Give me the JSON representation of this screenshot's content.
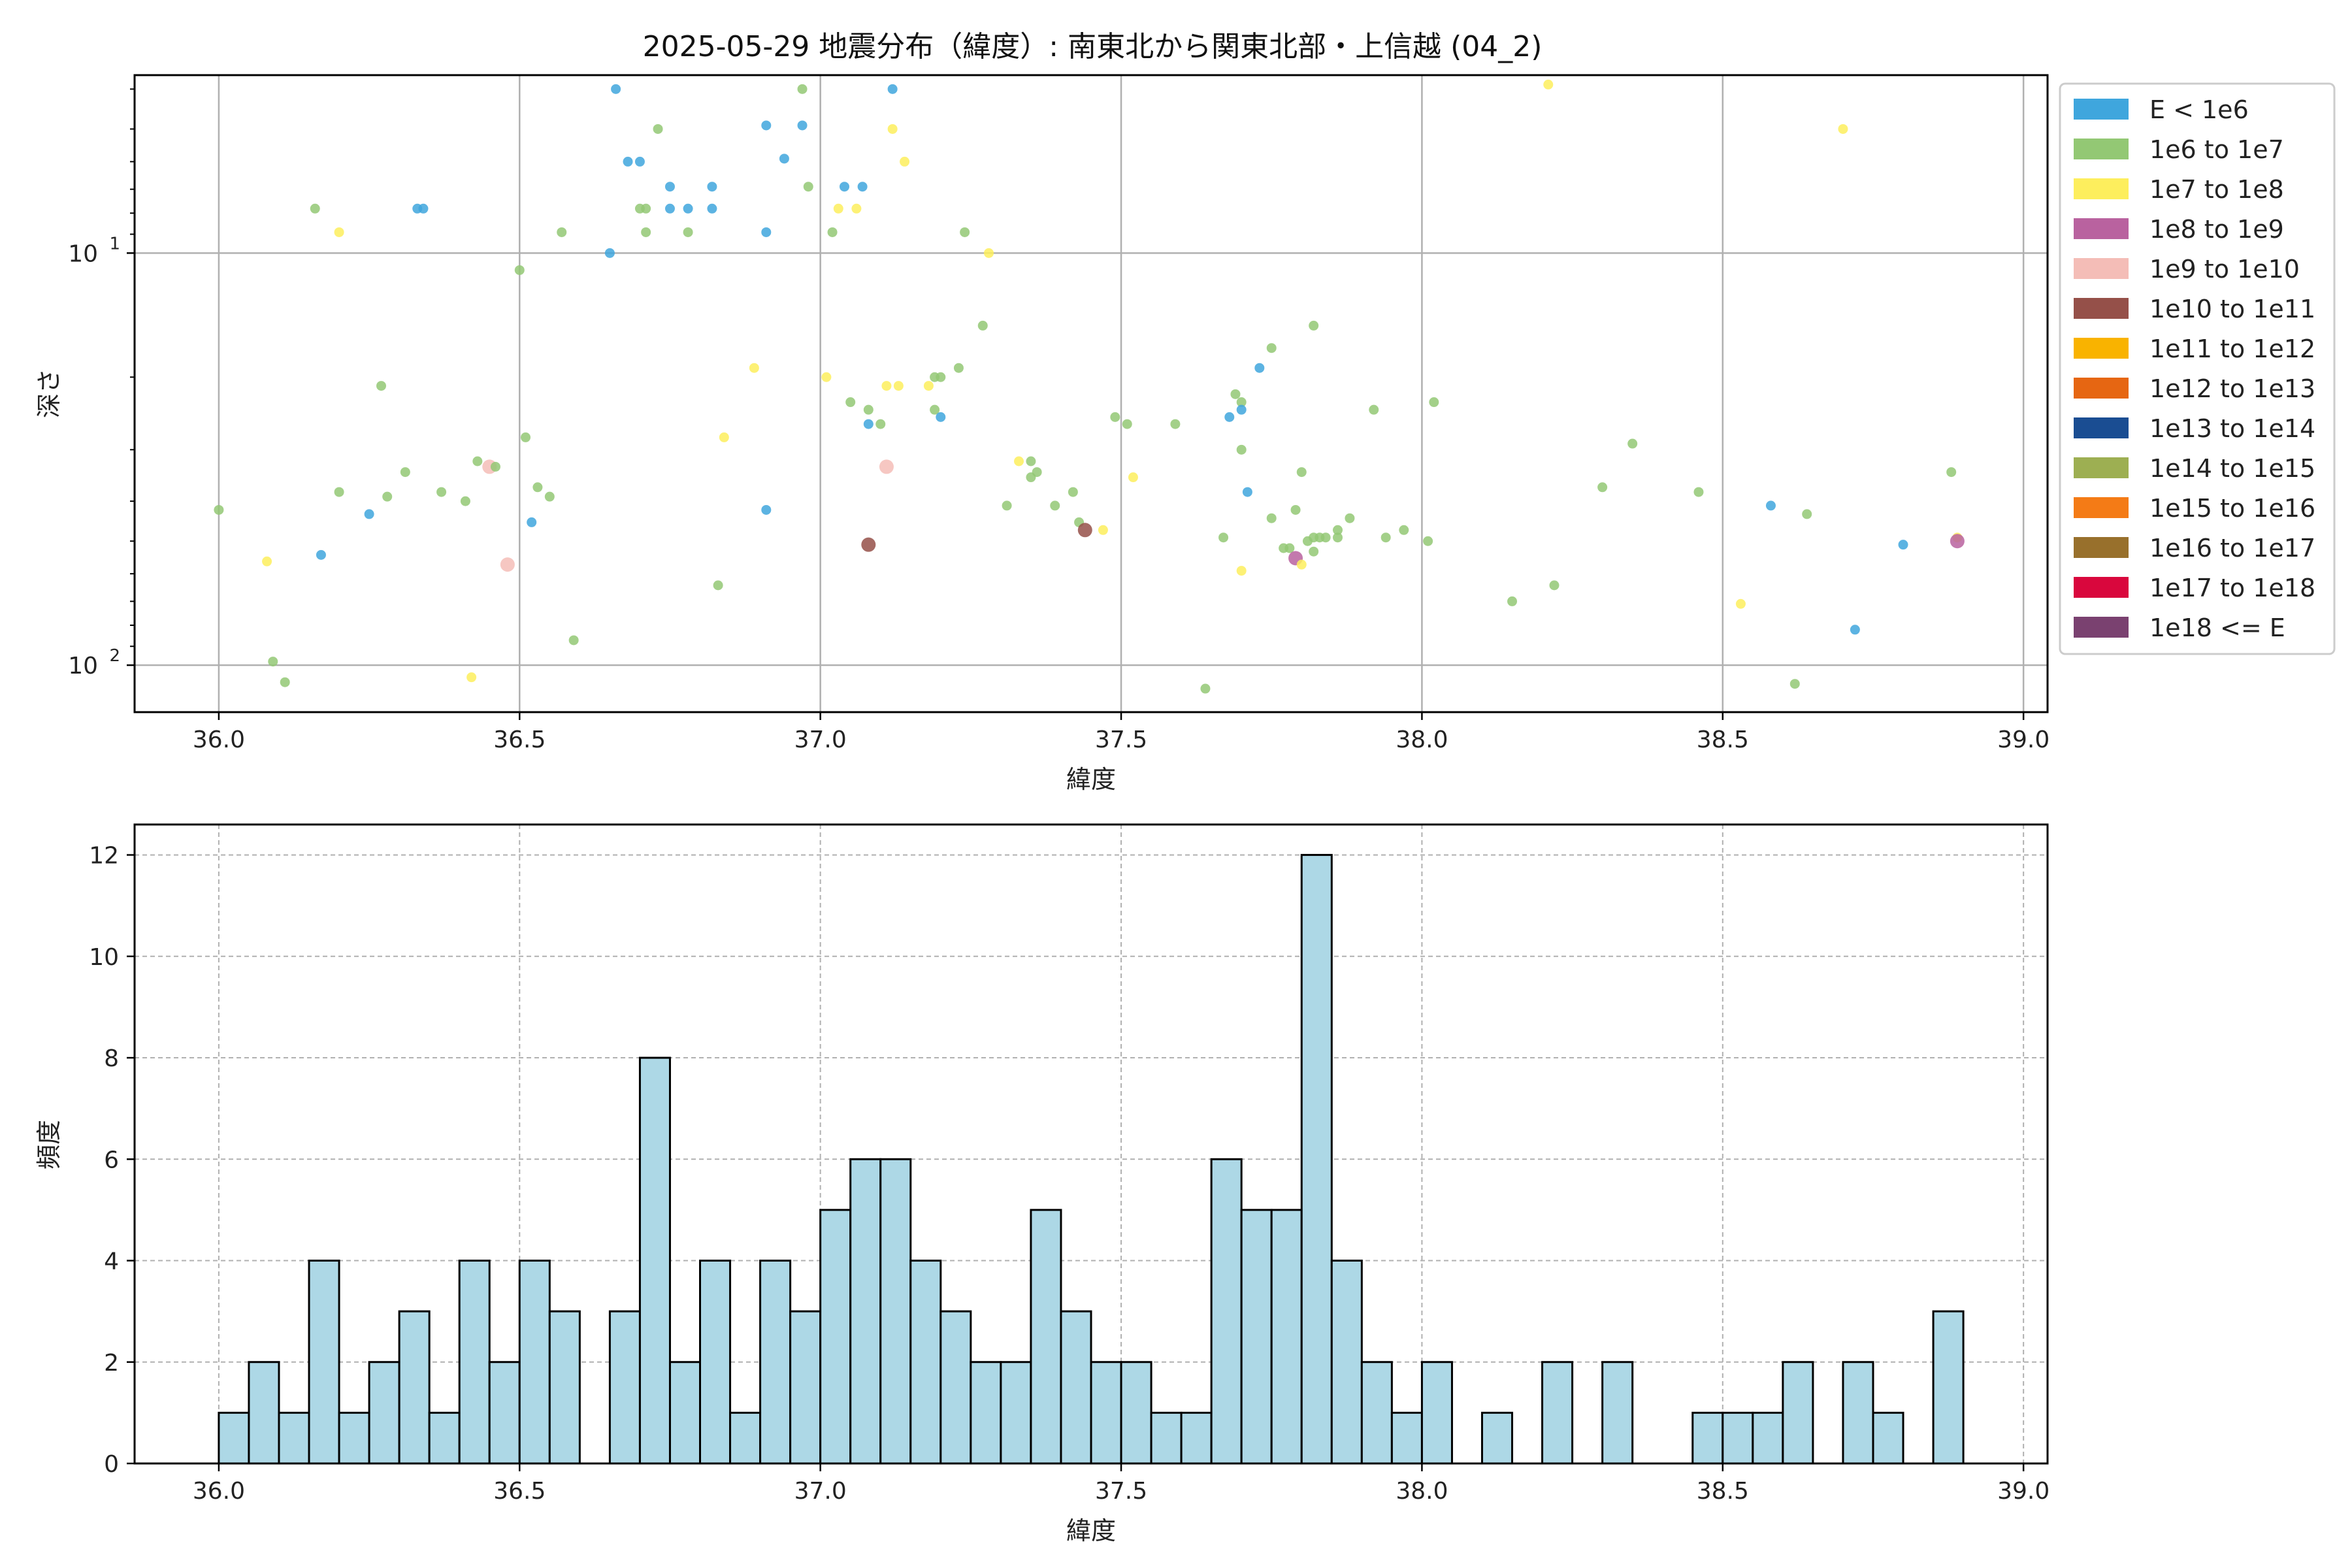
{
  "title": "2025-05-29 地震分布（緯度）: 南東北から関東北部・上信越 (04_2)",
  "chart_data": [
    {
      "type": "scatter",
      "xlabel": "緯度",
      "ylabel": "深さ",
      "xlim": [
        35.86,
        39.04
      ],
      "ylim": [
        130,
        3.7
      ],
      "yscale": "log",
      "y_inverted": true,
      "grid": true,
      "x_ticks": [
        "36.0",
        "36.5",
        "37.0",
        "37.5",
        "38.0",
        "38.5",
        "39.0"
      ],
      "y_tick_labels": [
        {
          "value": 10,
          "base": "10",
          "exp": "1"
        },
        {
          "value": 100,
          "base": "10",
          "exp": "2"
        }
      ],
      "legend_placement": "outside-right-top",
      "legend": [
        {
          "label": "E < 1e6",
          "color": "#3fa6dd"
        },
        {
          "label": "1e6 to 1e7",
          "color": "#93c874"
        },
        {
          "label": "1e7 to 1e8",
          "color": "#fdee5d"
        },
        {
          "label": "1e8 to 1e9",
          "color": "#b9629f"
        },
        {
          "label": "1e9 to 1e10",
          "color": "#f4bdb7"
        },
        {
          "label": "1e10 to 1e11",
          "color": "#955049"
        },
        {
          "label": "1e11 to 1e12",
          "color": "#f9b300"
        },
        {
          "label": "1e12 to 1e13",
          "color": "#e66612"
        },
        {
          "label": "1e13 to 1e14",
          "color": "#1a4d92"
        },
        {
          "label": "1e14 to 1e15",
          "color": "#9daf52"
        },
        {
          "label": "1e15 to 1e16",
          "color": "#f47b16"
        },
        {
          "label": "1e16 to 1e17",
          "color": "#98702c"
        },
        {
          "label": "1e17 to 1e18",
          "color": "#d9073d"
        },
        {
          "label": "1e18 <= E",
          "color": "#7a4170"
        }
      ],
      "points": [
        {
          "x": 36.0,
          "y": 42,
          "c": 1
        },
        {
          "x": 36.08,
          "y": 56,
          "c": 2
        },
        {
          "x": 36.09,
          "y": 98,
          "c": 1
        },
        {
          "x": 36.11,
          "y": 110,
          "c": 1
        },
        {
          "x": 36.16,
          "y": 7.8,
          "c": 1
        },
        {
          "x": 36.17,
          "y": 54,
          "c": 0
        },
        {
          "x": 36.2,
          "y": 8.9,
          "c": 2
        },
        {
          "x": 36.2,
          "y": 38,
          "c": 1
        },
        {
          "x": 36.25,
          "y": 43,
          "c": 0
        },
        {
          "x": 36.27,
          "y": 21,
          "c": 1
        },
        {
          "x": 36.28,
          "y": 39,
          "c": 1
        },
        {
          "x": 36.31,
          "y": 34,
          "c": 1
        },
        {
          "x": 36.33,
          "y": 7.8,
          "c": 0
        },
        {
          "x": 36.34,
          "y": 7.8,
          "c": 0
        },
        {
          "x": 36.37,
          "y": 38,
          "c": 1
        },
        {
          "x": 36.41,
          "y": 40,
          "c": 1
        },
        {
          "x": 36.42,
          "y": 107,
          "c": 2
        },
        {
          "x": 36.43,
          "y": 32,
          "c": 1
        },
        {
          "x": 36.45,
          "y": 33,
          "c": 4
        },
        {
          "x": 36.46,
          "y": 33,
          "c": 1
        },
        {
          "x": 36.48,
          "y": 57,
          "c": 4
        },
        {
          "x": 36.5,
          "y": 11,
          "c": 1
        },
        {
          "x": 36.51,
          "y": 28,
          "c": 1
        },
        {
          "x": 36.52,
          "y": 45,
          "c": 0
        },
        {
          "x": 36.53,
          "y": 37,
          "c": 1
        },
        {
          "x": 36.55,
          "y": 39,
          "c": 1
        },
        {
          "x": 36.57,
          "y": 8.9,
          "c": 1
        },
        {
          "x": 36.59,
          "y": 87,
          "c": 1
        },
        {
          "x": 36.65,
          "y": 10,
          "c": 0
        },
        {
          "x": 36.66,
          "y": 4.0,
          "c": 0
        },
        {
          "x": 36.68,
          "y": 6.0,
          "c": 0
        },
        {
          "x": 36.7,
          "y": 6.0,
          "c": 0
        },
        {
          "x": 36.7,
          "y": 7.8,
          "c": 1
        },
        {
          "x": 36.71,
          "y": 8.9,
          "c": 1
        },
        {
          "x": 36.71,
          "y": 7.8,
          "c": 1
        },
        {
          "x": 36.73,
          "y": 5.0,
          "c": 1
        },
        {
          "x": 36.75,
          "y": 6.9,
          "c": 0
        },
        {
          "x": 36.75,
          "y": 7.8,
          "c": 0
        },
        {
          "x": 36.78,
          "y": 7.8,
          "c": 0
        },
        {
          "x": 36.78,
          "y": 8.9,
          "c": 1
        },
        {
          "x": 36.82,
          "y": 6.9,
          "c": 0
        },
        {
          "x": 36.82,
          "y": 7.8,
          "c": 0
        },
        {
          "x": 36.83,
          "y": 64,
          "c": 1
        },
        {
          "x": 36.84,
          "y": 28,
          "c": 2
        },
        {
          "x": 36.89,
          "y": 19,
          "c": 2
        },
        {
          "x": 36.91,
          "y": 4.9,
          "c": 0
        },
        {
          "x": 36.91,
          "y": 8.9,
          "c": 0
        },
        {
          "x": 36.91,
          "y": 42,
          "c": 0
        },
        {
          "x": 36.94,
          "y": 5.9,
          "c": 0
        },
        {
          "x": 36.97,
          "y": 4.0,
          "c": 1
        },
        {
          "x": 36.97,
          "y": 4.9,
          "c": 0
        },
        {
          "x": 36.98,
          "y": 6.9,
          "c": 1
        },
        {
          "x": 37.01,
          "y": 20,
          "c": 2
        },
        {
          "x": 37.02,
          "y": 8.9,
          "c": 1
        },
        {
          "x": 37.03,
          "y": 7.8,
          "c": 2
        },
        {
          "x": 37.04,
          "y": 6.9,
          "c": 0
        },
        {
          "x": 37.05,
          "y": 23,
          "c": 1
        },
        {
          "x": 37.06,
          "y": 7.8,
          "c": 2
        },
        {
          "x": 37.07,
          "y": 6.9,
          "c": 0
        },
        {
          "x": 37.08,
          "y": 24,
          "c": 1
        },
        {
          "x": 37.08,
          "y": 26,
          "c": 0
        },
        {
          "x": 37.08,
          "y": 51,
          "c": 5
        },
        {
          "x": 37.1,
          "y": 26,
          "c": 1
        },
        {
          "x": 37.11,
          "y": 33,
          "c": 4
        },
        {
          "x": 37.11,
          "y": 21,
          "c": 2
        },
        {
          "x": 37.12,
          "y": 4.0,
          "c": 0
        },
        {
          "x": 37.12,
          "y": 5.0,
          "c": 2
        },
        {
          "x": 37.13,
          "y": 21,
          "c": 2
        },
        {
          "x": 37.14,
          "y": 6.0,
          "c": 2
        },
        {
          "x": 37.18,
          "y": 21,
          "c": 2
        },
        {
          "x": 37.19,
          "y": 20,
          "c": 1
        },
        {
          "x": 37.19,
          "y": 24,
          "c": 1
        },
        {
          "x": 37.2,
          "y": 25,
          "c": 0
        },
        {
          "x": 37.2,
          "y": 20,
          "c": 1
        },
        {
          "x": 37.23,
          "y": 19,
          "c": 1
        },
        {
          "x": 37.24,
          "y": 8.9,
          "c": 1
        },
        {
          "x": 37.27,
          "y": 15,
          "c": 1
        },
        {
          "x": 37.28,
          "y": 10,
          "c": 2
        },
        {
          "x": 37.31,
          "y": 41,
          "c": 1
        },
        {
          "x": 37.33,
          "y": 32,
          "c": 2
        },
        {
          "x": 37.35,
          "y": 32,
          "c": 1
        },
        {
          "x": 37.35,
          "y": 35,
          "c": 1
        },
        {
          "x": 37.36,
          "y": 34,
          "c": 1
        },
        {
          "x": 37.39,
          "y": 41,
          "c": 1
        },
        {
          "x": 37.42,
          "y": 38,
          "c": 1
        },
        {
          "x": 37.43,
          "y": 45,
          "c": 1
        },
        {
          "x": 37.44,
          "y": 47,
          "c": 5
        },
        {
          "x": 37.47,
          "y": 47,
          "c": 2
        },
        {
          "x": 37.49,
          "y": 25,
          "c": 1
        },
        {
          "x": 37.51,
          "y": 26,
          "c": 1
        },
        {
          "x": 37.52,
          "y": 35,
          "c": 2
        },
        {
          "x": 37.59,
          "y": 26,
          "c": 1
        },
        {
          "x": 37.64,
          "y": 114,
          "c": 1
        },
        {
          "x": 37.67,
          "y": 49,
          "c": 1
        },
        {
          "x": 37.68,
          "y": 25,
          "c": 0
        },
        {
          "x": 37.69,
          "y": 22,
          "c": 1
        },
        {
          "x": 37.7,
          "y": 23,
          "c": 1
        },
        {
          "x": 37.7,
          "y": 24,
          "c": 0
        },
        {
          "x": 37.7,
          "y": 30,
          "c": 1
        },
        {
          "x": 37.7,
          "y": 59,
          "c": 2
        },
        {
          "x": 37.71,
          "y": 38,
          "c": 0
        },
        {
          "x": 37.73,
          "y": 19,
          "c": 0
        },
        {
          "x": 37.75,
          "y": 17,
          "c": 1
        },
        {
          "x": 37.75,
          "y": 44,
          "c": 1
        },
        {
          "x": 37.77,
          "y": 52,
          "c": 1
        },
        {
          "x": 37.78,
          "y": 52,
          "c": 1
        },
        {
          "x": 37.79,
          "y": 42,
          "c": 1
        },
        {
          "x": 37.79,
          "y": 55,
          "c": 3
        },
        {
          "x": 37.8,
          "y": 57,
          "c": 2
        },
        {
          "x": 37.8,
          "y": 34,
          "c": 1
        },
        {
          "x": 37.81,
          "y": 50,
          "c": 1
        },
        {
          "x": 37.82,
          "y": 49,
          "c": 1
        },
        {
          "x": 37.82,
          "y": 15,
          "c": 1
        },
        {
          "x": 37.82,
          "y": 53,
          "c": 1
        },
        {
          "x": 37.83,
          "y": 49,
          "c": 1
        },
        {
          "x": 37.84,
          "y": 49,
          "c": 1
        },
        {
          "x": 37.86,
          "y": 49,
          "c": 1
        },
        {
          "x": 37.86,
          "y": 47,
          "c": 1
        },
        {
          "x": 37.88,
          "y": 44,
          "c": 1
        },
        {
          "x": 37.92,
          "y": 24,
          "c": 1
        },
        {
          "x": 37.94,
          "y": 49,
          "c": 1
        },
        {
          "x": 37.97,
          "y": 47,
          "c": 1
        },
        {
          "x": 38.01,
          "y": 50,
          "c": 1
        },
        {
          "x": 38.02,
          "y": 23,
          "c": 1
        },
        {
          "x": 38.15,
          "y": 70,
          "c": 1
        },
        {
          "x": 38.21,
          "y": 3.9,
          "c": 2
        },
        {
          "x": 38.22,
          "y": 64,
          "c": 1
        },
        {
          "x": 38.3,
          "y": 37,
          "c": 1
        },
        {
          "x": 38.35,
          "y": 29,
          "c": 1
        },
        {
          "x": 38.46,
          "y": 38,
          "c": 1
        },
        {
          "x": 38.53,
          "y": 71,
          "c": 2
        },
        {
          "x": 38.58,
          "y": 41,
          "c": 0
        },
        {
          "x": 38.62,
          "y": 111,
          "c": 1
        },
        {
          "x": 38.64,
          "y": 43,
          "c": 1
        },
        {
          "x": 38.7,
          "y": 5.0,
          "c": 2
        },
        {
          "x": 38.72,
          "y": 82,
          "c": 0
        },
        {
          "x": 38.8,
          "y": 51,
          "c": 0
        },
        {
          "x": 38.88,
          "y": 34,
          "c": 1
        },
        {
          "x": 38.89,
          "y": 49,
          "c": 2
        },
        {
          "x": 38.89,
          "y": 50,
          "c": 3
        }
      ]
    },
    {
      "type": "bar",
      "xlabel": "緯度",
      "ylabel": "頻度",
      "xlim": [
        35.86,
        39.04
      ],
      "ylim": [
        0,
        12.6
      ],
      "grid": true,
      "x_ticks": [
        "36.0",
        "36.5",
        "37.0",
        "37.5",
        "38.0",
        "38.5",
        "39.0"
      ],
      "y_ticks": [
        "0",
        "2",
        "4",
        "6",
        "8",
        "10",
        "12"
      ],
      "bin_start": 36.0,
      "bin_width": 0.05,
      "bar_color": "#add8e6",
      "values": [
        1,
        2,
        1,
        4,
        1,
        2,
        3,
        1,
        4,
        2,
        4,
        3,
        0,
        3,
        8,
        2,
        4,
        1,
        4,
        3,
        5,
        6,
        6,
        4,
        3,
        2,
        2,
        5,
        3,
        2,
        2,
        1,
        1,
        6,
        5,
        5,
        12,
        4,
        2,
        1,
        2,
        0,
        1,
        0,
        2,
        0,
        2,
        0,
        0,
        1,
        1,
        1,
        2,
        0,
        2,
        1,
        0,
        3
      ]
    }
  ]
}
